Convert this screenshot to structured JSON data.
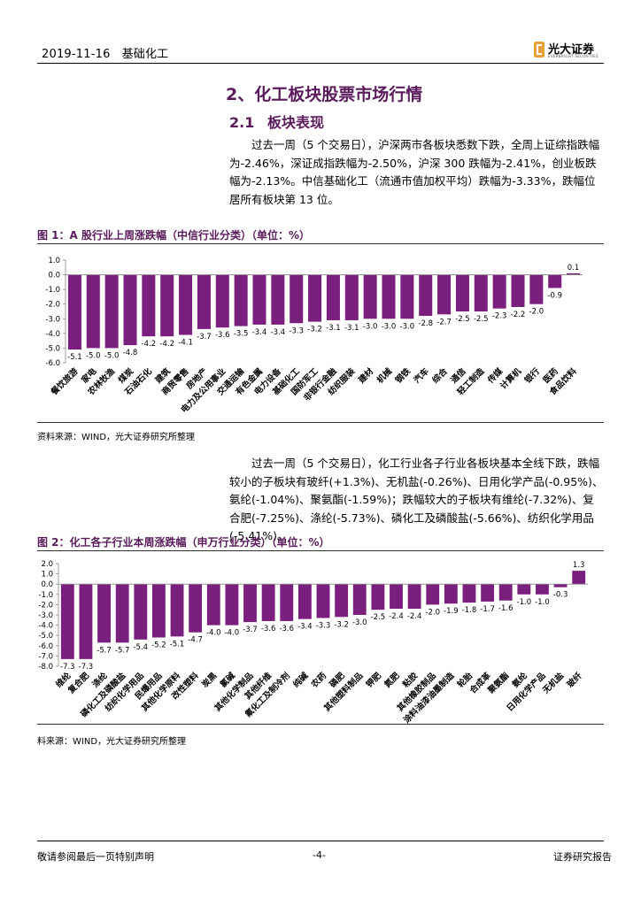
{
  "header": {
    "date": "2019-11-16",
    "section": "基础化工",
    "logo_cn": "光大证券",
    "logo_en": "EVERBRIGHT SECURITIES"
  },
  "section_title": "2、化工板块股票市场行情",
  "subsection": {
    "number": "2.1",
    "title": "板块表现"
  },
  "paragraph1": "过去一周（5 个交易日），沪深两市各板块悉数下跌，全周上证综指跌幅为-2.46%，深证成指跌幅为-2.50%，沪深 300 跌幅为-2.41%，创业板跌幅为-2.13%。中信基础化工（流通市值加权平均）跌幅为-3.33%，跌幅位居所有板块第 13 位。",
  "figure1_title": "图 1：A 股行业上周涨跌幅（中信行业分类）（单位：%）",
  "source1": "资料来源：WIND，光大证券研究所整理",
  "paragraph2": "过去一周（5 个交易日），化工行业各子行业各板块基本全线下跌，跌幅较小的子板块有玻纤(+1.3%)、无机盐(-0.26%)、日用化学产品(-0.95%)、氨纶(-1.04%)、聚氨酯(-1.59%)；跌幅较大的子板块有维纶(-7.32%)、复合肥(-7.25%)、涤纶(-5.73%)、磷化工及磷酸盐(-5.66%)、纺织化学用品(-5.41%)。",
  "figure2_title": "图 2：化工各子行业本周涨跌幅（申万行业分类）（单位：%）",
  "source2": "料来源：WIND，光大证券研究所整理",
  "footer": {
    "left": "敬请参阅最后一页特别声明",
    "page": "-4-",
    "right": "证券研究报告"
  },
  "chart_data": [
    {
      "type": "bar",
      "title": "图 1：A 股行业上周涨跌幅（中信行业分类）（单位：%）",
      "categories": [
        "餐饮旅游",
        "家电",
        "农林牧渔",
        "煤炭",
        "石油石化",
        "建筑",
        "商贸零售",
        "房地产",
        "电力及公用事业",
        "交通运输",
        "有色金属",
        "电力设备",
        "基础化工",
        "国防军工",
        "非银行金融",
        "纺织服装",
        "建材",
        "机械",
        "钢铁",
        "汽车",
        "综合",
        "通信",
        "轻工制造",
        "传媒",
        "计算机",
        "银行",
        "医药",
        "食品饮料"
      ],
      "values": [
        -5.1,
        -5.0,
        -5.0,
        -4.8,
        -4.2,
        -4.2,
        -4.1,
        -3.7,
        -3.6,
        -3.5,
        -3.4,
        -3.4,
        -3.3,
        -3.2,
        -3.1,
        -3.1,
        -3.0,
        -3.0,
        -3.0,
        -2.8,
        -2.7,
        -2.5,
        -2.5,
        -2.3,
        -2.2,
        -2.0,
        -0.9,
        0.1
      ],
      "value_labels": [
        "-5.1",
        "-5.0",
        "-5.0",
        "-4.8",
        "-4.2",
        "-4.2",
        "-4.1",
        "-3.7",
        "-3.6",
        "-3.5",
        "-3.4",
        "-3.4",
        "-3.3",
        "-3.2",
        "-3.1",
        "-3.1",
        "-3.0",
        "-3.0",
        "-3.0",
        "-2.8",
        "-2.7",
        "-2.5",
        "-2.5",
        "-2.3",
        "-2.2",
        "-2.0",
        "-0.9",
        "0.1"
      ],
      "yticks": [
        "1.0",
        "0.0",
        "-1.0",
        "-2.0",
        "-3.0",
        "-4.0",
        "-5.0",
        "-6.0"
      ],
      "ylim": [
        -6,
        1
      ],
      "color": "#7b1f7e"
    },
    {
      "type": "bar",
      "title": "图 2：化工各子行业本周涨跌幅（申万行业分类）（单位：%）",
      "categories": [
        "维纶",
        "复合肥",
        "涤纶",
        "磷化工及磷酸盐",
        "纺织化学用品",
        "民爆用品",
        "其他化学原料",
        "改性塑料",
        "炭黑",
        "氯碱",
        "其他化学制品",
        "其他纤维",
        "氟化工及制冷剂",
        "纯碱",
        "农药",
        "磷肥",
        "其他塑料制品",
        "钾肥",
        "氮肥",
        "粘胶",
        "其他橡胶制品",
        "涂料油漆油墨制造",
        "轮胎",
        "合成革",
        "聚氨酯",
        "氨纶",
        "日用化学产品",
        "无机盐",
        "玻纤"
      ],
      "values": [
        -7.3,
        -7.3,
        -5.7,
        -5.7,
        -5.4,
        -5.2,
        -5.1,
        -4.7,
        -4.0,
        -4.0,
        -3.7,
        -3.6,
        -3.6,
        -3.4,
        -3.3,
        -3.2,
        -3.0,
        -2.5,
        -2.4,
        -2.4,
        -2.0,
        -1.9,
        -1.8,
        -1.7,
        -1.6,
        -1.0,
        -1.0,
        -0.3,
        1.3
      ],
      "value_labels": [
        "-7.3",
        "-7.3",
        "-5.7",
        "-5.7",
        "-5.4",
        "-5.2",
        "-5.1",
        "-4.7",
        "-4.0",
        "-4.0",
        "-3.7",
        "-3.6",
        "-3.6",
        "-3.4",
        "-3.3",
        "-3.2",
        "-3.0",
        "-2.5",
        "-2.4",
        "-2.4",
        "-2.0",
        "-1.9",
        "-1.8",
        "-1.7",
        "-1.6",
        "-1.0",
        "-1.0",
        "-0.3",
        "1.3"
      ],
      "yticks": [
        "2.0",
        "1.0",
        "0.0",
        "-1.0",
        "-2.0",
        "-3.0",
        "-4.0",
        "-5.0",
        "-6.0",
        "-7.0",
        "-8.0"
      ],
      "ylim": [
        -8,
        2
      ],
      "color": "#7b1f7e"
    }
  ]
}
